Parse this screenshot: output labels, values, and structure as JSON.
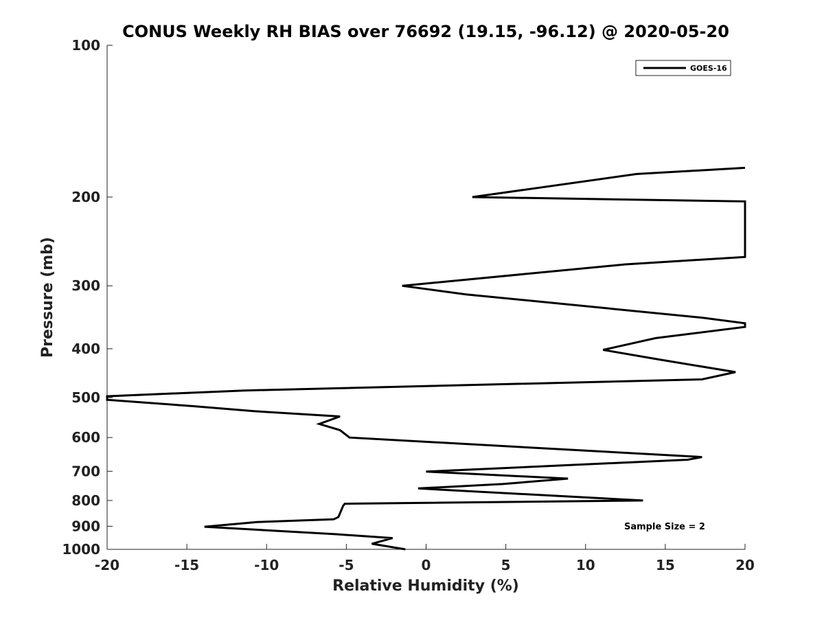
{
  "chart_data": {
    "type": "line",
    "title": "CONUS Weekly RH BIAS over 76692 (19.15, -96.12) @ 2020-05-20",
    "xlabel": "Relative Humidity (%)",
    "ylabel": "Pressure (mb)",
    "xlim": [
      -20,
      20
    ],
    "ylim": [
      1000,
      100
    ],
    "yscale": "log",
    "grid": false,
    "x_ticks": [
      -20,
      -15,
      -10,
      -5,
      0,
      5,
      10,
      15,
      20
    ],
    "y_ticks": [
      100,
      200,
      300,
      400,
      500,
      600,
      700,
      800,
      900,
      1000
    ],
    "legend": {
      "entries": [
        "GOES-16"
      ],
      "placement": "top-right"
    },
    "annotation": "Sample Size = 2",
    "series": [
      {
        "name": "GOES-16",
        "color": "#000000",
        "points": [
          [
            20,
            175
          ],
          [
            13.2,
            180
          ],
          [
            2.9,
            200
          ],
          [
            20,
            204
          ],
          [
            20,
            263
          ],
          [
            12.5,
            272
          ],
          [
            -1.5,
            300
          ],
          [
            2.5,
            312
          ],
          [
            17.3,
            347
          ],
          [
            20,
            356
          ],
          [
            20,
            362
          ],
          [
            14.4,
            381
          ],
          [
            11.1,
            402
          ],
          [
            14.6,
            420
          ],
          [
            19.4,
            445
          ],
          [
            17.3,
            460
          ],
          [
            -11.4,
            484
          ],
          [
            -20,
            497
          ],
          [
            -20,
            505
          ],
          [
            -14.6,
            520
          ],
          [
            -10.8,
            532
          ],
          [
            -5.4,
            545
          ],
          [
            -6.7,
            564
          ],
          [
            -5.4,
            580
          ],
          [
            -4.8,
            600
          ],
          [
            17.3,
            656
          ],
          [
            16.4,
            664
          ],
          [
            0,
            701
          ],
          [
            8.9,
            724
          ],
          [
            4.8,
            742
          ],
          [
            -0.5,
            757
          ],
          [
            13.6,
            800
          ],
          [
            -5.1,
            812
          ],
          [
            -5.2,
            820
          ],
          [
            -5.5,
            863
          ],
          [
            -5.8,
            872
          ],
          [
            -10.6,
            883
          ],
          [
            -13.9,
            902
          ],
          [
            -5.7,
            933
          ],
          [
            -2.1,
            950
          ],
          [
            -3.4,
            975
          ],
          [
            -1.3,
            1000
          ]
        ]
      }
    ]
  }
}
